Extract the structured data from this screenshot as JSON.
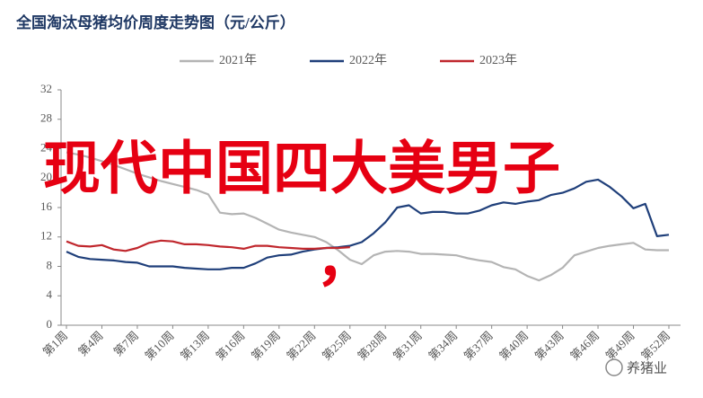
{
  "chart_data": {
    "type": "line",
    "title": "全国淘汰母猪均价周度走势图（元/公斤）",
    "categories": [
      "第1周",
      null,
      null,
      "第4周",
      null,
      null,
      "第7周",
      null,
      null,
      "第10周",
      null,
      null,
      "第13周",
      null,
      null,
      "第16周",
      null,
      null,
      "第19周",
      null,
      null,
      "第22周",
      null,
      null,
      "第25周",
      null,
      null,
      "第28周",
      null,
      null,
      "第31周",
      null,
      null,
      "第34周",
      null,
      null,
      "第37周",
      null,
      null,
      "第40周",
      null,
      null,
      "第43周",
      null,
      null,
      "第46周",
      null,
      null,
      "第49周",
      null,
      null,
      "第52周"
    ],
    "series": [
      {
        "name": "2021年",
        "color": "#b4b4b4",
        "values": [
          23.5,
          23.2,
          22.8,
          22.3,
          21.8,
          21.2,
          20.6,
          20.1,
          19.6,
          19.2,
          18.8,
          18.4,
          17.8,
          15.3,
          15.1,
          15.2,
          14.6,
          13.8,
          13.0,
          12.6,
          12.3,
          12.0,
          11.3,
          10.2,
          8.9,
          8.3,
          9.5,
          10.0,
          10.1,
          10.0,
          9.7,
          9.7,
          9.6,
          9.5,
          9.1,
          8.8,
          8.6,
          7.9,
          7.6,
          6.7,
          6.1,
          6.8,
          7.8,
          9.5,
          10.0,
          10.5,
          10.8,
          11.0,
          11.2,
          10.3,
          10.2,
          10.2
        ]
      },
      {
        "name": "2022年",
        "color": "#1f3f7a",
        "values": [
          10.0,
          9.3,
          9.0,
          8.9,
          8.8,
          8.6,
          8.5,
          8.0,
          8.0,
          8.0,
          7.8,
          7.7,
          7.6,
          7.6,
          7.8,
          7.8,
          8.4,
          9.2,
          9.5,
          9.6,
          10.0,
          10.3,
          10.5,
          10.6,
          10.8,
          11.3,
          12.5,
          14.0,
          16.0,
          16.3,
          15.2,
          15.4,
          15.4,
          15.2,
          15.2,
          15.6,
          16.3,
          16.7,
          16.5,
          16.8,
          17.0,
          17.7,
          18.0,
          18.6,
          19.5,
          19.8,
          18.8,
          17.5,
          15.9,
          16.5,
          12.1,
          12.3
        ]
      },
      {
        "name": "2023年",
        "color": "#c0272d",
        "values": [
          11.4,
          10.8,
          10.7,
          10.9,
          10.3,
          10.1,
          10.5,
          11.2,
          11.5,
          11.4,
          11.0,
          11.0,
          10.9,
          10.7,
          10.6,
          10.4,
          10.8,
          10.8,
          10.6,
          10.5,
          10.4,
          10.4,
          10.5,
          10.5,
          10.6,
          null,
          null,
          null,
          null,
          null,
          null,
          null,
          null,
          null,
          null,
          null,
          null,
          null,
          null,
          null,
          null,
          null,
          null,
          null,
          null,
          null,
          null,
          null,
          null,
          null,
          null,
          null
        ]
      }
    ],
    "ylim": [
      0,
      32
    ],
    "yticks": [
      0,
      4,
      8,
      12,
      16,
      20,
      24,
      28,
      32
    ],
    "annotation": [
      "现代中国四大美男子",
      "，"
    ],
    "watermark": "养猪业"
  }
}
